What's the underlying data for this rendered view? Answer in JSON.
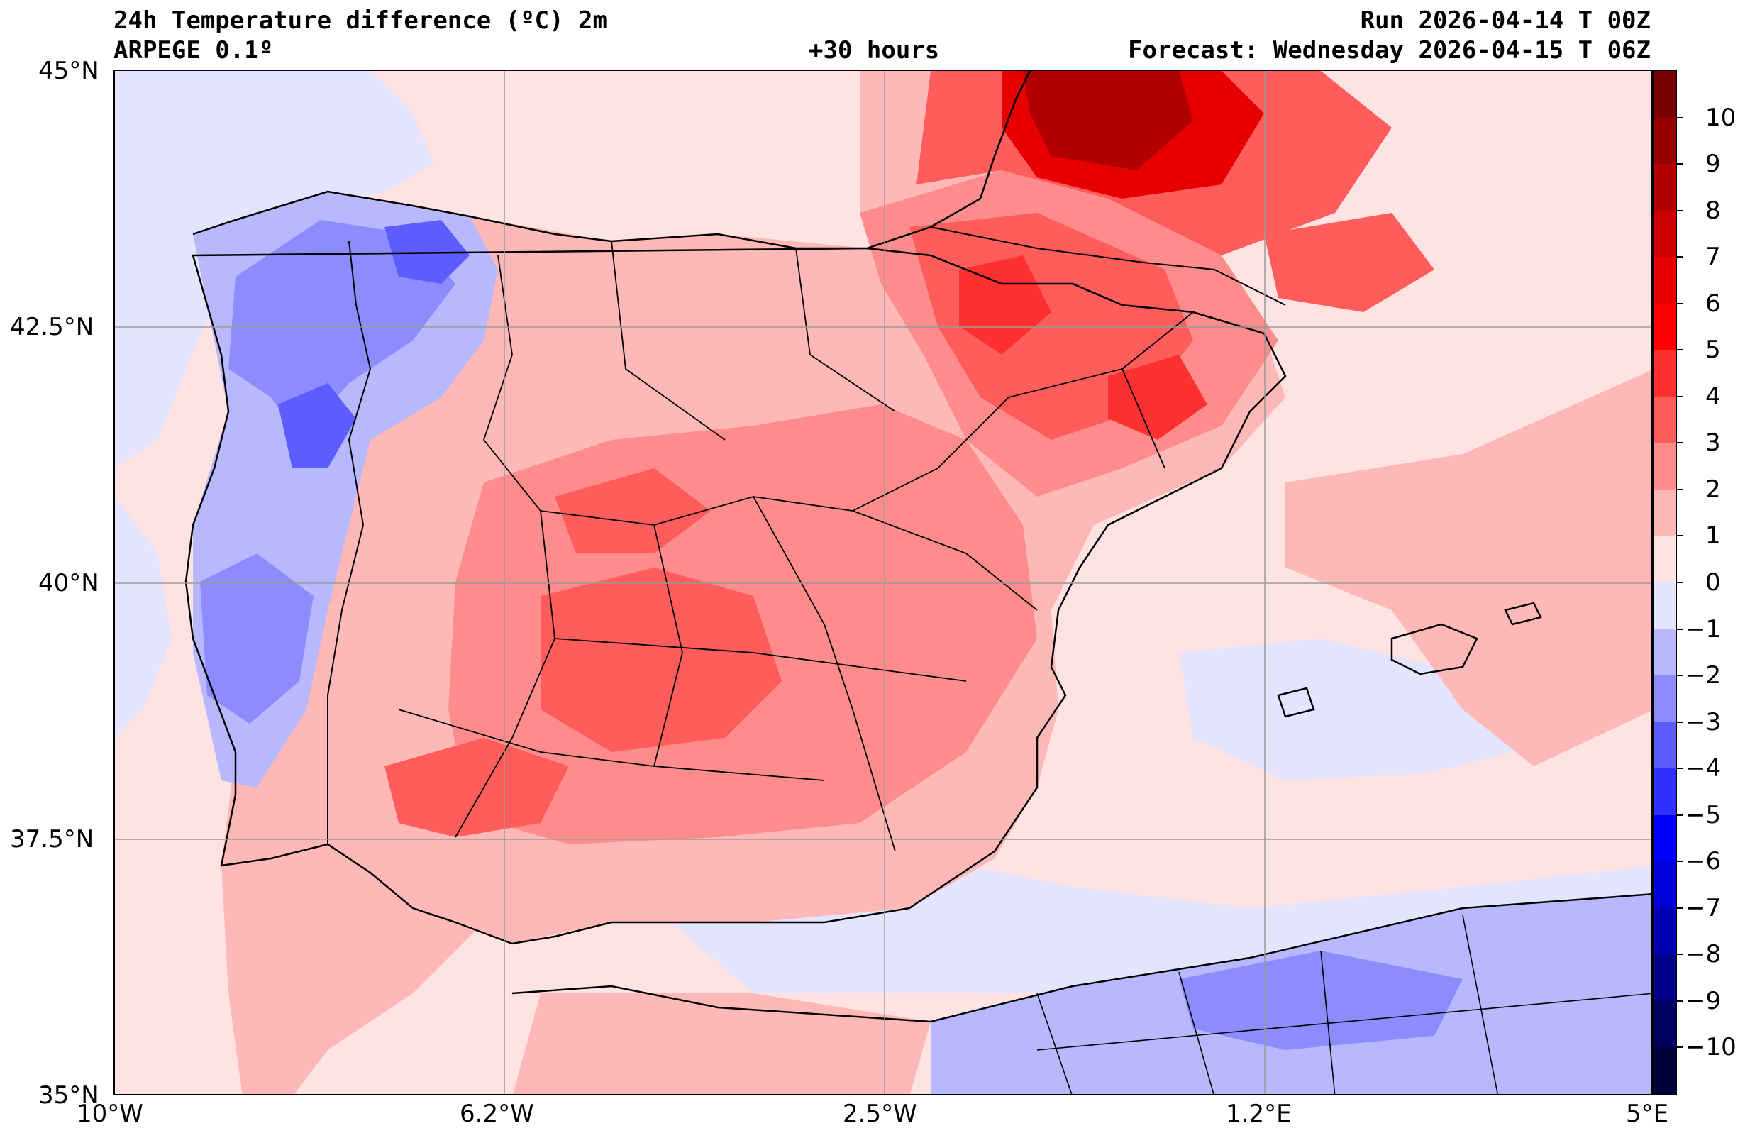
{
  "header": {
    "title": "24h Temperature difference (ºC) 2m",
    "model": "ARPEGE 0.1º",
    "lead": "+30 hours",
    "run": "Run 2026-04-14 T 00Z",
    "forecast": "Forecast: Wednesday 2026-04-15 T 06Z"
  },
  "axes": {
    "lat_labels": [
      "45°N",
      "42.5°N",
      "40°N",
      "37.5°N",
      "35°N"
    ],
    "lon_labels": [
      "10°W",
      "6.2°W",
      "2.5°W",
      "1.2°E",
      "5°E"
    ],
    "lat_range": [
      35,
      45
    ],
    "lon_range": [
      -10,
      5
    ],
    "grid": true
  },
  "colorbar": {
    "levels": [
      -10,
      -9,
      -8,
      -7,
      -6,
      -5,
      -4,
      -3,
      -2,
      -1,
      0,
      1,
      2,
      3,
      4,
      5,
      6,
      7,
      8,
      9,
      10
    ],
    "labels": [
      "10",
      "9",
      "8",
      "7",
      "6",
      "5",
      "4",
      "3",
      "2",
      "1",
      "0",
      "−1",
      "−2",
      "−3",
      "−4",
      "−5",
      "−6",
      "−7",
      "−8",
      "−9",
      "−10"
    ],
    "colors_top_to_bottom": [
      "#7a0000",
      "#970000",
      "#b20000",
      "#cc0000",
      "#e60000",
      "#ff0000",
      "#ff3030",
      "#ff5c5c",
      "#ff8c8c",
      "#ffb8b8",
      "#ffe2e2",
      "#e4e4ff",
      "#b8b8ff",
      "#8c8cff",
      "#5c5cff",
      "#3030ff",
      "#0000ff",
      "#0000d8",
      "#0000b0",
      "#000088",
      "#000060",
      "#00003a"
    ]
  },
  "field": {
    "sea_default_level": 0,
    "notes_visible": []
  },
  "colors": {
    "warm_1": "#ffe2e2",
    "warm_2": "#ffb8b8",
    "warm_3": "#ff8c8c",
    "warm_4": "#ff5c5c",
    "warm_5": "#ff3030",
    "warm_6": "#e60000",
    "warm_7": "#cc0000",
    "warm_8": "#b20000",
    "cool_1": "#e4e4ff",
    "cool_2": "#b8b8ff",
    "cool_3": "#8c8cff",
    "cool_4": "#5c5cff"
  }
}
